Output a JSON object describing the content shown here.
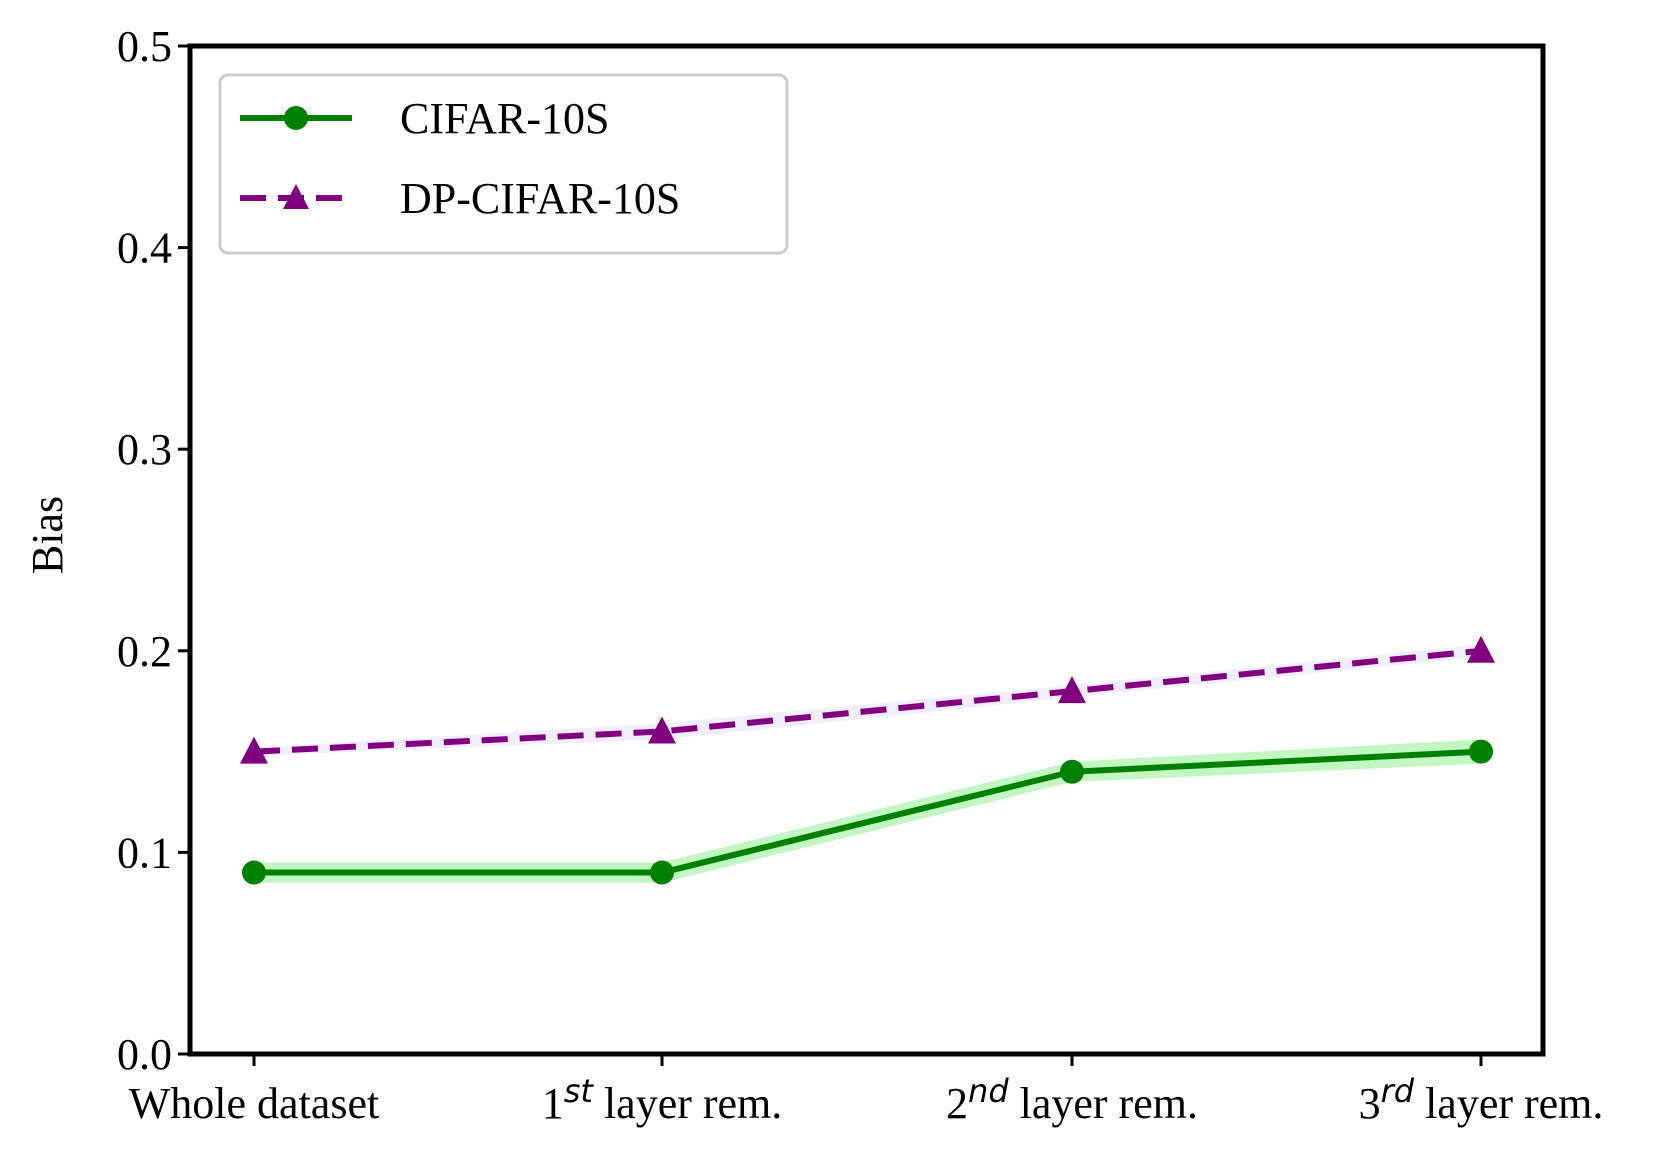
{
  "chart_data": {
    "type": "line",
    "title": "",
    "xlabel": "",
    "ylabel": "Bias",
    "ylim": [
      0.0,
      0.5
    ],
    "yticks": [
      "0.0",
      "0.1",
      "0.2",
      "0.3",
      "0.4",
      "0.5"
    ],
    "categories": [
      {
        "base": "Whole dataset",
        "sup": "",
        "rest": ""
      },
      {
        "base": "1",
        "sup": "st",
        "rest": " layer rem."
      },
      {
        "base": "2",
        "sup": "nd",
        "rest": " layer rem."
      },
      {
        "base": "3",
        "sup": "rd",
        "rest": " layer rem."
      }
    ],
    "grid": false,
    "legend_position": "top-left",
    "series": [
      {
        "name": "CIFAR-10S",
        "values": [
          0.09,
          0.09,
          0.14,
          0.15
        ],
        "band": [
          0.005,
          0.005,
          0.005,
          0.006
        ],
        "color": "#008000",
        "band_color": "#90ee90",
        "line_style": "solid",
        "marker": "circle"
      },
      {
        "name": "DP-CIFAR-10S",
        "values": [
          0.15,
          0.16,
          0.18,
          0.2
        ],
        "band": [
          0.002,
          0.004,
          0.003,
          0.003
        ],
        "color": "#800080",
        "band_color": "#e6e0fa",
        "line_style": "dashed",
        "marker": "triangle"
      }
    ]
  }
}
